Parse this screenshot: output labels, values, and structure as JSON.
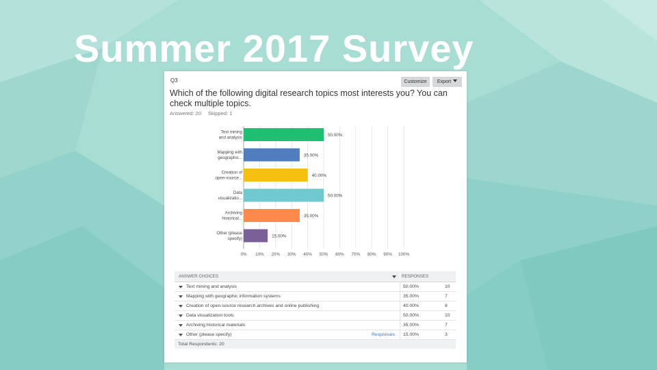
{
  "slide": {
    "title": "Summer 2017 Survey"
  },
  "card": {
    "question_number": "Q3",
    "customize_label": "Customize",
    "export_label": "Export",
    "question": "Which of the following digital research topics most interests you? You can check multiple topics.",
    "answered": "Answered: 20",
    "skipped": "Skipped: 1"
  },
  "chart_data": {
    "type": "bar",
    "orientation": "horizontal",
    "categories": [
      "Text mining and analysis",
      "Mapping with geographic...",
      "Creation of open-source...",
      "Data visualizatio...",
      "Archiving historical...",
      "Other (please specify)"
    ],
    "values": [
      50,
      35,
      40,
      50,
      35,
      15
    ],
    "value_labels": [
      "50.00%",
      "35.00%",
      "40.00%",
      "50.00%",
      "35.00%",
      "15.00%"
    ],
    "colors": [
      "#1ebf72",
      "#4f7dbe",
      "#f5c00f",
      "#6fc9cf",
      "#fd8a4c",
      "#7b5f97"
    ],
    "xlim": [
      0,
      100
    ],
    "xticks": [
      "0%",
      "10%",
      "20%",
      "30%",
      "40%",
      "50%",
      "60%",
      "70%",
      "80%",
      "90%",
      "100%"
    ],
    "grid": true
  },
  "table": {
    "header_choice": "ANSWER CHOICES",
    "header_responses": "RESPONSES",
    "rows": [
      {
        "label": "Text mining and analysis",
        "pct": "50.00%",
        "count": "10",
        "link": ""
      },
      {
        "label": "Mapping with geographic information systems",
        "pct": "35.00%",
        "count": "7",
        "link": ""
      },
      {
        "label": "Creation of open-source research archives and online publishing",
        "pct": "40.00%",
        "count": "8",
        "link": ""
      },
      {
        "label": "Data visualization tools",
        "pct": "50.00%",
        "count": "10",
        "link": ""
      },
      {
        "label": "Archiving historical materials",
        "pct": "35.00%",
        "count": "7",
        "link": ""
      },
      {
        "label": "Other (please specify)",
        "pct": "15.00%",
        "count": "3",
        "link": "Responses"
      }
    ],
    "total": "Total Respondents: 20"
  }
}
